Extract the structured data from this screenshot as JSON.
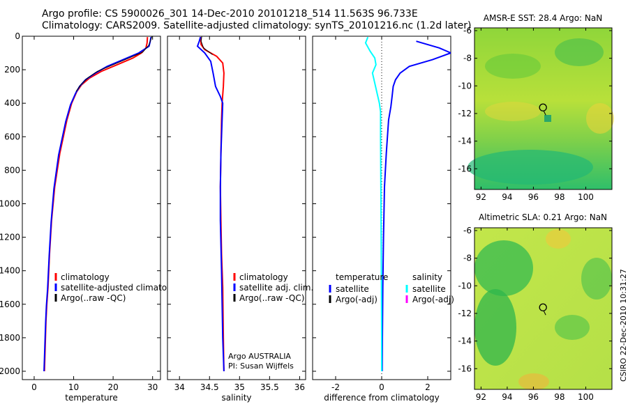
{
  "header": {
    "line1": "Argo profile: CS 5900026_301 14-Dec-2010 20101218_514 11.563S 96.733E",
    "line2": "Climatology: CARS2009. Satellite-adjusted climatology: synTS_20101216.nc (1.2d later)"
  },
  "credit": "CSIRO 22-Dec-2010 10:31:27",
  "colors": {
    "climatology": "#ff0000",
    "satellite": "#0000ff",
    "argo": "#000000",
    "satellite_salinity_diff": "#00ffff",
    "argo_adj_salinity_diff": "#ff00ff"
  },
  "chart_data": [
    {
      "type": "line",
      "id": "temperature",
      "xlabel": "temperature",
      "ylabel": "",
      "xlim": [
        -3,
        32
      ],
      "ylim": [
        2050,
        0
      ],
      "y_reversed": true,
      "xticks": [
        0,
        10,
        20,
        30
      ],
      "yticks": [
        0,
        200,
        400,
        600,
        800,
        1000,
        1200,
        1400,
        1600,
        1800,
        2000
      ],
      "series": [
        {
          "name": "climatology",
          "color": "#ff0000",
          "width": 2,
          "x": [
            28.7,
            28.6,
            28.3,
            27.2,
            25.0,
            21.0,
            17.0,
            14.0,
            12.0,
            10.8,
            9.5,
            8.3,
            6.5,
            5.2,
            4.4,
            3.9,
            3.5,
            3.2,
            3.0,
            2.8,
            2.6
          ],
          "y": [
            5,
            40,
            70,
            100,
            130,
            170,
            210,
            250,
            290,
            330,
            400,
            500,
            700,
            900,
            1100,
            1300,
            1500,
            1600,
            1700,
            1850,
            2000
          ]
        },
        {
          "name": "satellite-adjusted climatology",
          "color": "#0000ff",
          "width": 2,
          "x": [
            29.6,
            29.4,
            29.1,
            26.5,
            22.5,
            18.5,
            15.5,
            13.0,
            11.5,
            10.5,
            9.2,
            8.0,
            6.2,
            5.0,
            4.3,
            3.8,
            3.4,
            3.1,
            2.9,
            2.7,
            2.5
          ],
          "y": [
            5,
            30,
            60,
            100,
            140,
            180,
            220,
            260,
            300,
            340,
            410,
            510,
            710,
            910,
            1110,
            1310,
            1510,
            1610,
            1710,
            1860,
            2000
          ]
        },
        {
          "name": "Argo(..raw -QC)",
          "color": "#000000",
          "width": 1,
          "x": [
            29.8,
            29.5,
            29.0,
            27.5,
            24.0,
            20.0,
            16.0,
            13.5,
            11.8,
            10.6
          ],
          "y": [
            2,
            25,
            55,
            95,
            130,
            170,
            210,
            250,
            290,
            330
          ]
        }
      ],
      "legend": [
        "climatology",
        "satellite-adjusted climatology",
        "Argo(..raw -QC)"
      ],
      "legend_loc": "lower-middle"
    },
    {
      "type": "line",
      "id": "salinity",
      "xlabel": "salinity",
      "ylabel": "",
      "xlim": [
        33.8,
        36.1
      ],
      "ylim": [
        2050,
        0
      ],
      "y_reversed": true,
      "xticks": [
        34,
        34.5,
        35,
        35.5,
        36
      ],
      "series": [
        {
          "name": "climatology",
          "color": "#ff0000",
          "width": 2,
          "x": [
            34.35,
            34.36,
            34.42,
            34.62,
            34.72,
            34.74,
            34.73,
            34.71,
            34.7,
            34.69,
            34.68,
            34.69,
            34.7,
            34.72,
            34.73,
            34.74
          ],
          "y": [
            5,
            50,
            80,
            120,
            160,
            220,
            300,
            400,
            500,
            700,
            900,
            1100,
            1300,
            1500,
            1800,
            2000
          ]
        },
        {
          "name": "satellite adj. clim.",
          "color": "#0000ff",
          "width": 2,
          "x": [
            34.35,
            34.33,
            34.3,
            34.42,
            34.52,
            34.56,
            34.6,
            34.68,
            34.72,
            34.71,
            34.69,
            34.68,
            34.68,
            34.7,
            34.72,
            34.74
          ],
          "y": [
            5,
            30,
            60,
            100,
            150,
            220,
            300,
            360,
            400,
            500,
            700,
            900,
            1100,
            1400,
            1800,
            2000
          ]
        },
        {
          "name": "Argo(..raw -QC)",
          "color": "#000000",
          "width": 1,
          "x": [
            34.37,
            34.36,
            34.4,
            34.55
          ],
          "y": [
            2,
            30,
            70,
            110
          ]
        }
      ],
      "legend": [
        "climatology",
        "satellite adj. clim.",
        "Argo(..raw -QC)"
      ],
      "legend_loc": "lower-middle",
      "annotation": [
        "Argo AUSTRALIA",
        "PI: Susan Wijffels"
      ]
    },
    {
      "type": "line",
      "id": "difference",
      "xlabel": "difference from climatology",
      "ylabel": "",
      "xlim": [
        -3,
        3
      ],
      "ylim": [
        2050,
        0
      ],
      "y_reversed": true,
      "xticks": [
        -2,
        0,
        2
      ],
      "series": [
        {
          "name": "temperature satellite",
          "color": "#0000ff",
          "width": 2,
          "x": [
            1.5,
            2.5,
            3.0,
            2.2,
            1.2,
            0.8,
            0.6,
            0.5,
            0.45,
            0.4,
            0.3,
            0.2,
            0.12,
            0.08,
            0.05,
            0.03,
            0.02
          ],
          "y": [
            30,
            70,
            100,
            140,
            180,
            220,
            260,
            300,
            360,
            420,
            500,
            700,
            900,
            1200,
            1500,
            1800,
            2000
          ]
        },
        {
          "name": "salinity satellite",
          "color": "#00ffff",
          "width": 2,
          "x": [
            -0.6,
            -0.7,
            -0.5,
            -0.3,
            -0.25,
            -0.4,
            -0.3,
            -0.2,
            -0.1,
            -0.05,
            -0.05,
            -0.04,
            -0.03,
            -0.02,
            -0.01,
            0.0,
            0.0
          ],
          "y": [
            5,
            40,
            90,
            130,
            170,
            220,
            280,
            340,
            400,
            450,
            600,
            800,
            1000,
            1200,
            1500,
            1800,
            2000
          ]
        }
      ],
      "legend_groups": [
        {
          "heading": "temperature",
          "items": [
            {
              "label": "satellite",
              "color": "#0000ff"
            },
            {
              "label": "Argo(-adj)",
              "color": "#000000"
            }
          ]
        },
        {
          "heading": "salinity",
          "items": [
            {
              "label": "satellite",
              "color": "#00ffff"
            },
            {
              "label": "Argo(-adj)",
              "color": "#ff00ff"
            }
          ]
        }
      ],
      "zero_line": "dotted"
    },
    {
      "type": "heatmap",
      "id": "amsre_sst",
      "title": "AMSR-E SST: 28.4 Argo: NaN",
      "xlim": [
        91.5,
        102
      ],
      "ylim": [
        -17.5,
        -5.8
      ],
      "xticks": [
        92,
        94,
        96,
        98,
        100
      ],
      "yticks": [
        -6,
        -8,
        -10,
        -12,
        -14,
        -16
      ],
      "marker": {
        "lon": 96.733,
        "lat": -11.563,
        "shape": "circle"
      }
    },
    {
      "type": "heatmap",
      "id": "altimetric_sla",
      "title": "Altimetric SLA: 0.21 Argo: NaN",
      "xlim": [
        91.5,
        102
      ],
      "ylim": [
        -17.5,
        -5.8
      ],
      "xticks": [
        92,
        94,
        96,
        98,
        100
      ],
      "yticks": [
        -6,
        -8,
        -10,
        -12,
        -14,
        -16
      ],
      "marker": {
        "lon": 96.733,
        "lat": -11.563,
        "shape": "circle"
      }
    }
  ]
}
